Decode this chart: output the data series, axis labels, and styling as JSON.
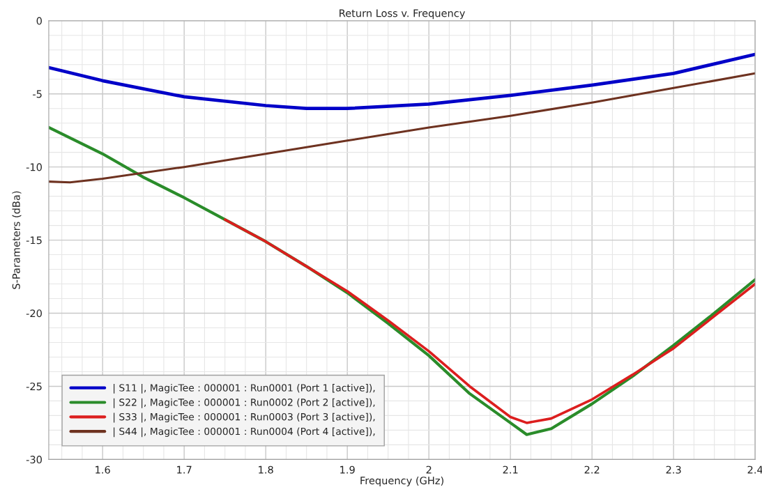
{
  "chart_data": {
    "type": "line",
    "title": "Return Loss v. Frequency",
    "xlabel": "Frequency (GHz)",
    "ylabel": "S-Parameters (dBa)",
    "xlim": [
      1.534,
      2.4
    ],
    "xticks": [
      {
        "value": 1.6,
        "label": "1.6"
      },
      {
        "value": 1.7,
        "label": "1.7"
      },
      {
        "value": 1.8,
        "label": "1.8"
      },
      {
        "value": 1.9,
        "label": "1.9"
      },
      {
        "value": 2.0,
        "label": "2"
      },
      {
        "value": 2.1,
        "label": "2.1"
      },
      {
        "value": 2.2,
        "label": "2.2"
      },
      {
        "value": 2.3,
        "label": "2.3"
      },
      {
        "value": 2.4,
        "label": "2.4"
      }
    ],
    "ylim": [
      -30,
      0
    ],
    "yticks": [
      -30,
      -25,
      -20,
      -15,
      -10,
      -5,
      0
    ],
    "grid": true,
    "legend": "bottom left",
    "marker": "none",
    "line_style": "solid",
    "series": [
      {
        "name": "| S11 |, MagicTee : 000001 : Run0001 (Port 1 [active]),",
        "color": "#0000c8",
        "x": [
          1.534,
          1.6,
          1.7,
          1.8,
          1.85,
          1.9,
          2.0,
          2.1,
          2.2,
          2.3,
          2.4
        ],
        "values": [
          -3.2,
          -4.1,
          -5.2,
          -5.8,
          -6.0,
          -6.0,
          -5.7,
          -5.1,
          -4.4,
          -3.6,
          -2.3
        ]
      },
      {
        "name": "| S22 |, MagicTee : 000001 : Run0002 (Port 2 [active]),",
        "color": "#2a8c2a",
        "x": [
          1.534,
          1.6,
          1.65,
          1.7,
          1.75,
          1.8,
          1.85,
          1.9,
          1.95,
          2.0,
          2.05,
          2.1,
          2.12,
          2.15,
          2.2,
          2.25,
          2.3,
          2.35,
          2.4
        ],
        "values": [
          -7.3,
          -9.1,
          -10.7,
          -12.1,
          -13.6,
          -15.1,
          -16.8,
          -18.6,
          -20.7,
          -22.9,
          -25.5,
          -27.5,
          -28.3,
          -27.9,
          -26.2,
          -24.3,
          -22.2,
          -20.0,
          -17.7
        ]
      },
      {
        "name": "| S33 |, MagicTee : 000001 : Run0003 (Port 3 [active]),",
        "color": "#dc1e1e",
        "x": [
          1.75,
          1.8,
          1.85,
          1.9,
          1.95,
          2.0,
          2.05,
          2.1,
          2.12,
          2.15,
          2.2,
          2.25,
          2.3,
          2.35,
          2.4
        ],
        "values": [
          -13.6,
          -15.1,
          -16.8,
          -18.5,
          -20.5,
          -22.6,
          -25.0,
          -27.1,
          -27.5,
          -27.2,
          -25.9,
          -24.2,
          -22.4,
          -20.2,
          -18.0
        ]
      },
      {
        "name": "| S44 |, MagicTee : 000001 : Run0004 (Port 4 [active]),",
        "color": "#6e3220",
        "x": [
          1.534,
          1.56,
          1.6,
          1.7,
          1.8,
          1.9,
          2.0,
          2.1,
          2.2,
          2.3,
          2.4
        ],
        "values": [
          -11.0,
          -11.05,
          -10.8,
          -10.0,
          -9.1,
          -8.2,
          -7.3,
          -6.5,
          -5.6,
          -4.6,
          -3.6
        ]
      }
    ]
  }
}
